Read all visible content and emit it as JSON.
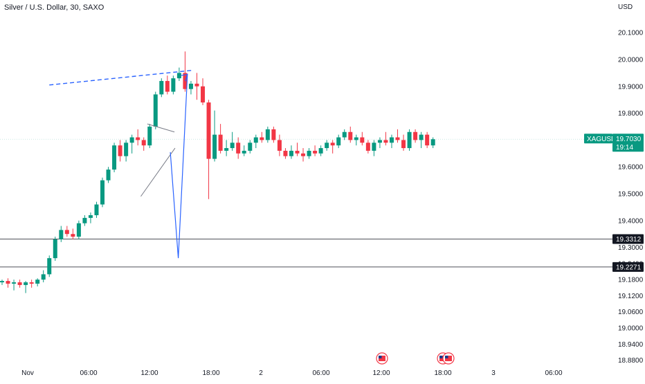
{
  "header": {
    "title": "Silver / U.S. Dollar, 30, SAXO",
    "currency": "USD"
  },
  "colors": {
    "up": "#089981",
    "down": "#f23645",
    "projection": "#2962ff",
    "trendline": "#787b86",
    "level": "#131722",
    "price_badge": "#089981",
    "level_badge": "#131722"
  },
  "icons": [
    "us-flag-event-icon",
    "us-flag-event-icon-pair"
  ],
  "chart_data": {
    "type": "candlestick",
    "symbol": "XAGUSD",
    "last_price": "19.7030",
    "countdown": "19:14",
    "y_axis": {
      "ticks": [
        "20.1000",
        "20.0000",
        "19.9000",
        "19.8000",
        "19.7000",
        "19.6000",
        "19.5000",
        "19.4000",
        "19.3000",
        "19.2400",
        "19.1800",
        "19.1200",
        "19.0600",
        "19.0000",
        "18.9400",
        "18.8800"
      ],
      "range": [
        18.88,
        20.13
      ]
    },
    "x_axis": {
      "ticks": [
        "Nov",
        "06:00",
        "12:00",
        "18:00",
        "2",
        "06:00",
        "12:00",
        "18:00",
        "3",
        "06:00"
      ]
    },
    "levels": [
      {
        "label": "19.3312",
        "value": 19.3312
      },
      {
        "label": "19.2271",
        "value": 19.2271
      }
    ],
    "candles": [
      [
        19.17,
        19.18,
        19.16,
        19.175
      ],
      [
        19.175,
        19.185,
        19.15,
        19.165
      ],
      [
        19.165,
        19.18,
        19.14,
        19.17
      ],
      [
        19.17,
        19.18,
        19.15,
        19.16
      ],
      [
        19.16,
        19.175,
        19.13,
        19.17
      ],
      [
        19.17,
        19.18,
        19.15,
        19.165
      ],
      [
        19.165,
        19.185,
        19.155,
        19.18
      ],
      [
        19.18,
        19.215,
        19.17,
        19.2
      ],
      [
        19.2,
        19.27,
        19.19,
        19.26
      ],
      [
        19.26,
        19.34,
        19.25,
        19.33
      ],
      [
        19.33,
        19.38,
        19.32,
        19.365
      ],
      [
        19.365,
        19.38,
        19.34,
        19.35
      ],
      [
        19.35,
        19.37,
        19.33,
        19.34
      ],
      [
        19.34,
        19.4,
        19.33,
        19.39
      ],
      [
        19.39,
        19.42,
        19.38,
        19.41
      ],
      [
        19.41,
        19.43,
        19.39,
        19.42
      ],
      [
        19.42,
        19.47,
        19.41,
        19.46
      ],
      [
        19.46,
        19.56,
        19.45,
        19.55
      ],
      [
        19.55,
        19.6,
        19.54,
        19.59
      ],
      [
        19.59,
        19.69,
        19.58,
        19.68
      ],
      [
        19.68,
        19.7,
        19.62,
        19.64
      ],
      [
        19.64,
        19.7,
        19.62,
        19.69
      ],
      [
        19.69,
        19.72,
        19.65,
        19.71
      ],
      [
        19.71,
        19.74,
        19.68,
        19.7
      ],
      [
        19.7,
        19.71,
        19.66,
        19.68
      ],
      [
        19.68,
        19.76,
        19.67,
        19.75
      ],
      [
        19.75,
        19.88,
        19.74,
        19.87
      ],
      [
        19.87,
        19.93,
        19.86,
        19.92
      ],
      [
        19.92,
        19.94,
        19.87,
        19.88
      ],
      [
        19.88,
        19.94,
        19.87,
        19.93
      ],
      [
        19.93,
        19.97,
        19.92,
        19.95
      ],
      [
        19.95,
        20.03,
        19.88,
        19.89
      ],
      [
        19.89,
        19.92,
        19.87,
        19.91
      ],
      [
        19.91,
        19.95,
        19.85,
        19.9
      ],
      [
        19.9,
        19.93,
        19.83,
        19.84
      ],
      [
        19.84,
        19.85,
        19.48,
        19.63
      ],
      [
        19.63,
        19.81,
        19.62,
        19.72
      ],
      [
        19.72,
        19.76,
        19.65,
        19.66
      ],
      [
        19.66,
        19.7,
        19.64,
        19.67
      ],
      [
        19.67,
        19.73,
        19.66,
        19.69
      ],
      [
        19.69,
        19.71,
        19.63,
        19.65
      ],
      [
        19.65,
        19.68,
        19.64,
        19.66
      ],
      [
        19.66,
        19.7,
        19.65,
        19.69
      ],
      [
        19.69,
        19.72,
        19.67,
        19.71
      ],
      [
        19.71,
        19.73,
        19.69,
        19.7
      ],
      [
        19.7,
        19.75,
        19.69,
        19.74
      ],
      [
        19.74,
        19.75,
        19.69,
        19.7
      ],
      [
        19.7,
        19.72,
        19.64,
        19.66
      ],
      [
        19.66,
        19.67,
        19.63,
        19.64
      ],
      [
        19.64,
        19.68,
        19.63,
        19.66
      ],
      [
        19.66,
        19.69,
        19.64,
        19.65
      ],
      [
        19.65,
        19.67,
        19.62,
        19.64
      ],
      [
        19.64,
        19.67,
        19.63,
        19.66
      ],
      [
        19.66,
        19.68,
        19.64,
        19.65
      ],
      [
        19.65,
        19.68,
        19.64,
        19.67
      ],
      [
        19.67,
        19.7,
        19.66,
        19.69
      ],
      [
        19.69,
        19.7,
        19.65,
        19.68
      ],
      [
        19.68,
        19.72,
        19.67,
        19.71
      ],
      [
        19.71,
        19.74,
        19.7,
        19.73
      ],
      [
        19.73,
        19.75,
        19.69,
        19.7
      ],
      [
        19.7,
        19.72,
        19.68,
        19.71
      ],
      [
        19.71,
        19.73,
        19.68,
        19.69
      ],
      [
        19.69,
        19.7,
        19.65,
        19.66
      ],
      [
        19.66,
        19.7,
        19.64,
        19.69
      ],
      [
        19.69,
        19.71,
        19.67,
        19.7
      ],
      [
        19.7,
        19.73,
        19.68,
        19.69
      ],
      [
        19.69,
        19.72,
        19.67,
        19.71
      ],
      [
        19.71,
        19.74,
        19.69,
        19.7
      ],
      [
        19.7,
        19.72,
        19.66,
        19.67
      ],
      [
        19.67,
        19.74,
        19.66,
        19.73
      ],
      [
        19.73,
        19.74,
        19.69,
        19.7
      ],
      [
        19.7,
        19.73,
        19.67,
        19.72
      ],
      [
        19.72,
        19.73,
        19.67,
        19.68
      ],
      [
        19.68,
        19.71,
        19.67,
        19.703
      ]
    ],
    "drawings": {
      "triangle_upper": [
        [
          1444.6,
          19.76
        ],
        [
          1449.2,
          19.73
        ]
      ],
      "triangle_lower": [
        [
          1443.5,
          19.49
        ],
        [
          1449.3,
          19.67
        ]
      ],
      "dashed_resistance": [
        [
          1428,
          19.905
        ],
        [
          1452.4,
          19.96
        ]
      ],
      "projection_path": [
        [
          1448.5,
          19.655
        ],
        [
          1449.85,
          19.26
        ],
        [
          1451.4,
          19.945
        ]
      ]
    }
  }
}
